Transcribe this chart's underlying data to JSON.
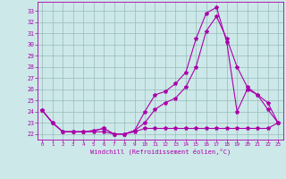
{
  "xlabel": "Windchill (Refroidissement éolien,°C)",
  "x_ticks": [
    0,
    1,
    2,
    3,
    4,
    5,
    6,
    7,
    8,
    9,
    10,
    11,
    12,
    13,
    14,
    15,
    16,
    17,
    18,
    19,
    20,
    21,
    22,
    23
  ],
  "ylim": [
    21.5,
    33.8
  ],
  "xlim": [
    -0.5,
    23.5
  ],
  "yticks": [
    22,
    23,
    24,
    25,
    26,
    27,
    28,
    29,
    30,
    31,
    32,
    33
  ],
  "bg_color": "#cce8e8",
  "line_color": "#aa00aa",
  "grid_color": "#99bbbb",
  "line1_x": [
    0,
    1,
    2,
    3,
    4,
    5,
    6,
    7,
    8,
    9,
    10,
    11,
    12,
    13,
    14,
    15,
    16,
    17,
    18,
    19,
    20,
    21,
    22,
    23
  ],
  "line1_y": [
    24.1,
    23.0,
    22.2,
    22.2,
    22.2,
    22.2,
    22.2,
    22.0,
    22.0,
    22.2,
    22.5,
    22.5,
    22.5,
    22.5,
    22.5,
    22.5,
    22.5,
    22.5,
    22.5,
    22.5,
    22.5,
    22.5,
    22.5,
    23.0
  ],
  "line2_x": [
    0,
    1,
    2,
    3,
    4,
    5,
    6,
    7,
    8,
    9,
    10,
    11,
    12,
    13,
    14,
    15,
    16,
    17,
    18,
    19,
    20,
    21,
    22,
    23
  ],
  "line2_y": [
    24.1,
    23.0,
    22.2,
    22.2,
    22.2,
    22.3,
    22.5,
    22.0,
    22.0,
    22.3,
    24.0,
    25.5,
    25.8,
    26.5,
    27.5,
    30.5,
    32.8,
    33.3,
    30.2,
    24.0,
    26.0,
    25.5,
    24.8,
    23.0
  ],
  "line3_x": [
    0,
    1,
    2,
    3,
    4,
    5,
    6,
    7,
    8,
    9,
    10,
    11,
    12,
    13,
    14,
    15,
    16,
    17,
    18,
    19,
    20,
    21,
    22,
    23
  ],
  "line3_y": [
    24.1,
    23.0,
    22.2,
    22.2,
    22.2,
    22.3,
    22.5,
    22.0,
    22.0,
    22.3,
    23.0,
    24.2,
    24.8,
    25.2,
    26.2,
    28.0,
    31.2,
    32.5,
    30.5,
    28.0,
    26.2,
    25.5,
    24.2,
    23.0
  ]
}
